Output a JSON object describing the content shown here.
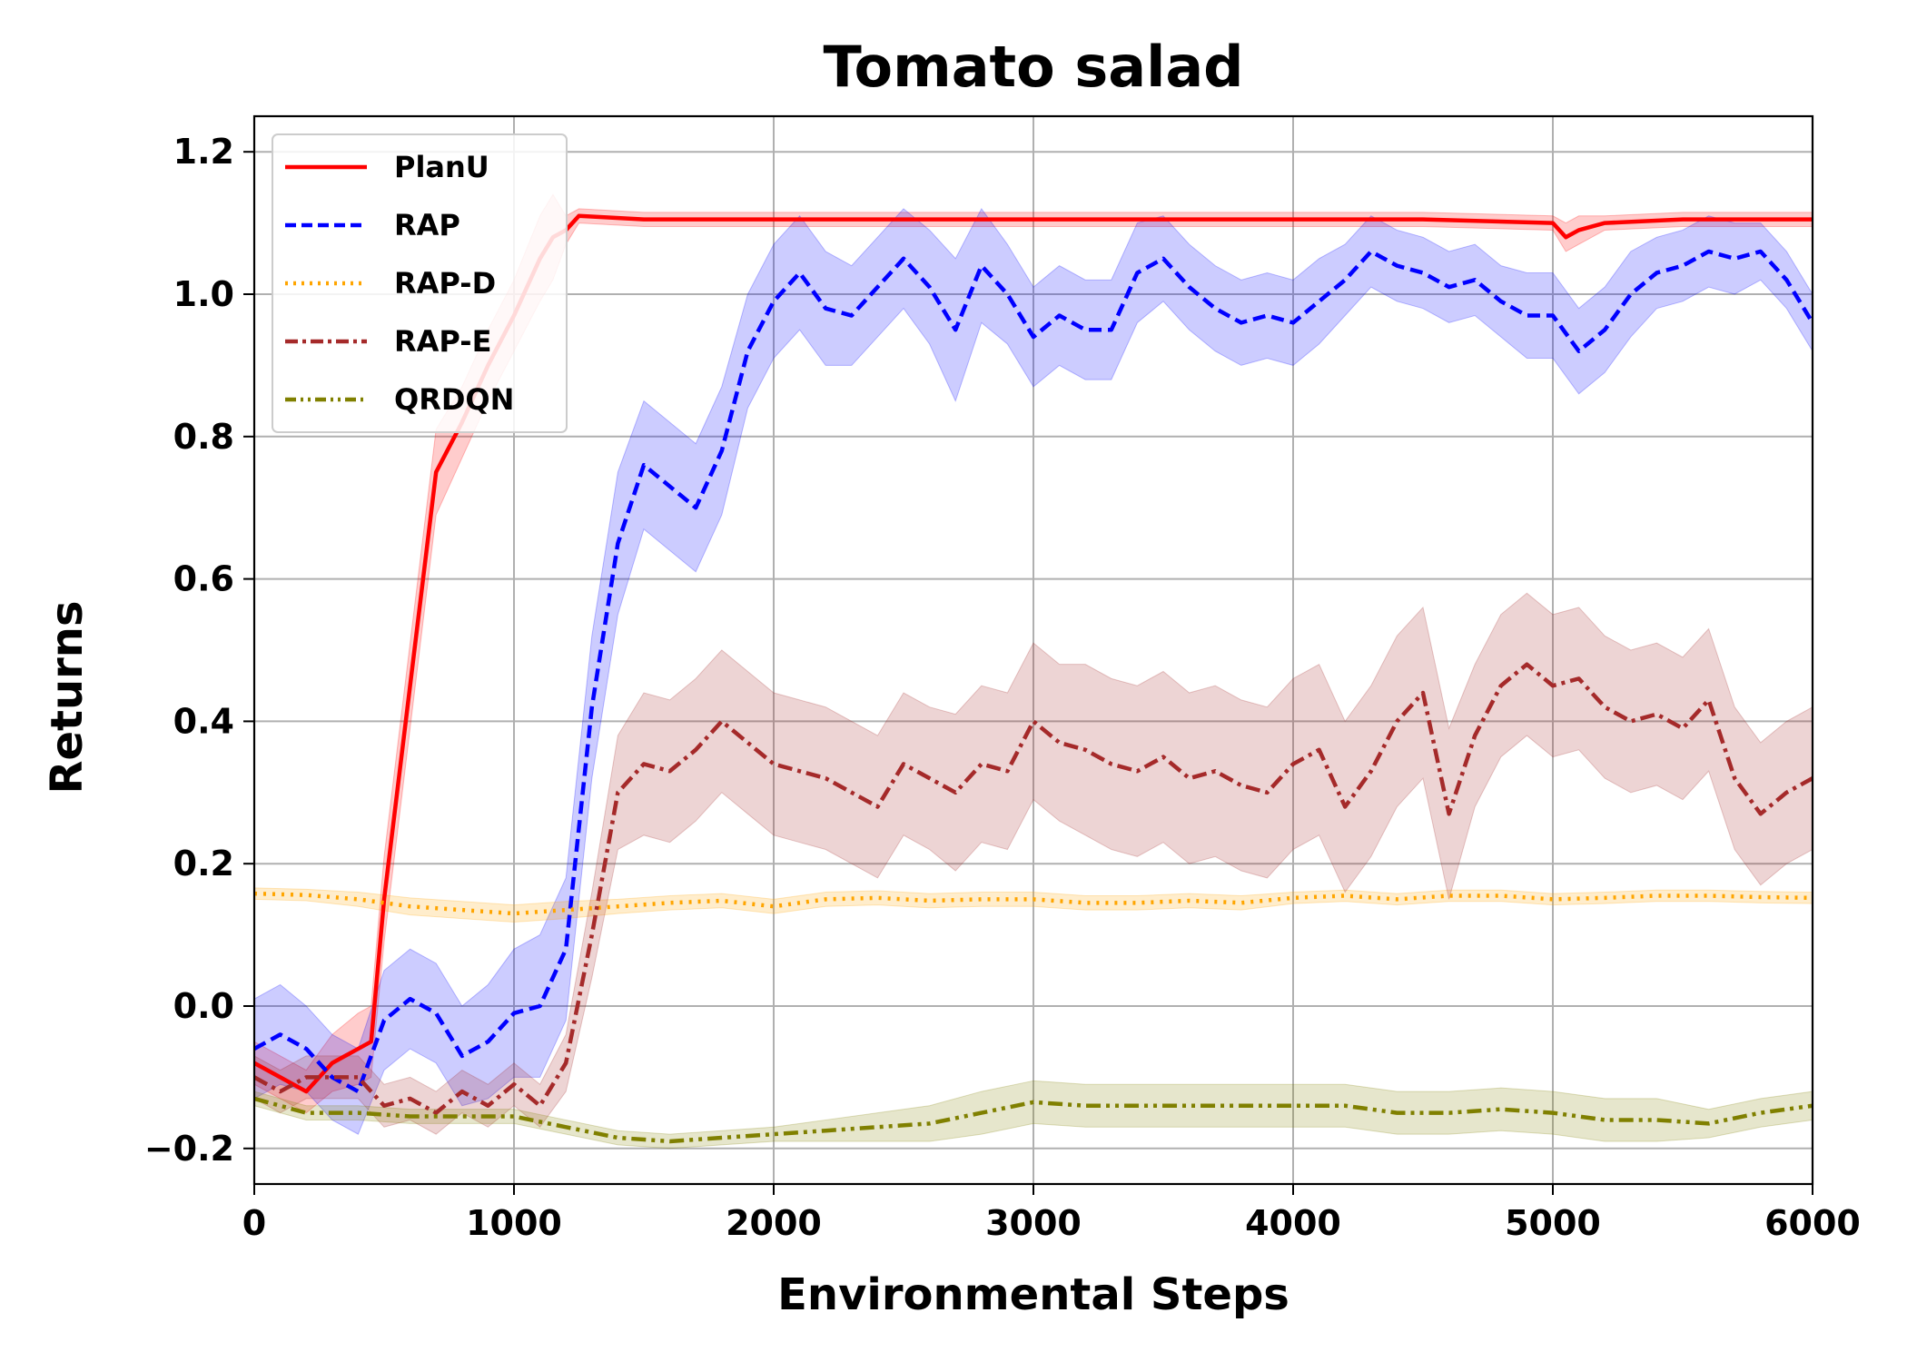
{
  "chart_data": {
    "type": "line",
    "title": "Tomato salad",
    "xlabel": "Environmental Steps",
    "ylabel": "Returns",
    "xlim": [
      0,
      6000
    ],
    "ylim": [
      -0.25,
      1.25
    ],
    "x_ticks": [
      0,
      1000,
      2000,
      3000,
      4000,
      5000,
      6000
    ],
    "x_tick_labels": [
      "0",
      "1000",
      "2000",
      "3000",
      "4000",
      "5000",
      "6000"
    ],
    "y_ticks": [
      -0.2,
      0.0,
      0.2,
      0.4,
      0.6,
      0.8,
      1.0,
      1.2
    ],
    "y_tick_labels": [
      "−0.2",
      "0.0",
      "0.2",
      "0.4",
      "0.6",
      "0.8",
      "1.0",
      "1.2"
    ],
    "grid": true,
    "legend_position": "top-left",
    "series": [
      {
        "name": "PlanU",
        "color": "#ff0000",
        "dash": "solid",
        "x": [
          0,
          100,
          200,
          300,
          400,
          450,
          500,
          600,
          700,
          800,
          900,
          1000,
          1100,
          1150,
          1200,
          1250,
          1500,
          2000,
          2500,
          3000,
          3500,
          4000,
          4500,
          5000,
          5050,
          5100,
          5200,
          5500,
          6000
        ],
        "y": [
          -0.08,
          -0.1,
          -0.12,
          -0.08,
          -0.06,
          -0.05,
          0.15,
          0.45,
          0.75,
          0.82,
          0.9,
          0.97,
          1.05,
          1.08,
          1.09,
          1.11,
          1.105,
          1.105,
          1.105,
          1.105,
          1.105,
          1.105,
          1.105,
          1.1,
          1.08,
          1.09,
          1.1,
          1.105,
          1.105
        ],
        "band": [
          0.03,
          0.03,
          0.03,
          0.04,
          0.05,
          0.05,
          0.06,
          0.06,
          0.06,
          0.05,
          0.05,
          0.05,
          0.06,
          0.06,
          0.02,
          0.01,
          0.01,
          0.01,
          0.01,
          0.01,
          0.01,
          0.01,
          0.01,
          0.01,
          0.02,
          0.02,
          0.01,
          0.01,
          0.01
        ]
      },
      {
        "name": "RAP",
        "color": "#0000ff",
        "dash": "dashed",
        "x": [
          0,
          100,
          200,
          300,
          400,
          500,
          600,
          700,
          800,
          900,
          1000,
          1100,
          1200,
          1300,
          1400,
          1500,
          1600,
          1700,
          1800,
          1900,
          2000,
          2100,
          2200,
          2300,
          2400,
          2500,
          2600,
          2700,
          2800,
          2900,
          3000,
          3100,
          3200,
          3300,
          3400,
          3500,
          3600,
          3700,
          3800,
          3900,
          4000,
          4100,
          4200,
          4300,
          4400,
          4500,
          4600,
          4700,
          4800,
          4900,
          5000,
          5100,
          5200,
          5300,
          5400,
          5500,
          5600,
          5700,
          5800,
          5900,
          6000
        ],
        "y": [
          -0.06,
          -0.04,
          -0.06,
          -0.1,
          -0.12,
          -0.02,
          0.01,
          -0.01,
          -0.07,
          -0.05,
          -0.01,
          0.0,
          0.08,
          0.42,
          0.65,
          0.76,
          0.73,
          0.7,
          0.78,
          0.92,
          0.99,
          1.03,
          0.98,
          0.97,
          1.01,
          1.05,
          1.01,
          0.95,
          1.04,
          1.0,
          0.94,
          0.97,
          0.95,
          0.95,
          1.03,
          1.05,
          1.01,
          0.98,
          0.96,
          0.97,
          0.96,
          0.99,
          1.02,
          1.06,
          1.04,
          1.03,
          1.01,
          1.02,
          0.99,
          0.97,
          0.97,
          0.92,
          0.95,
          1.0,
          1.03,
          1.04,
          1.06,
          1.05,
          1.06,
          1.02,
          0.96
        ],
        "band": [
          0.07,
          0.07,
          0.06,
          0.06,
          0.06,
          0.07,
          0.07,
          0.07,
          0.07,
          0.08,
          0.09,
          0.1,
          0.1,
          0.1,
          0.1,
          0.09,
          0.09,
          0.09,
          0.09,
          0.08,
          0.08,
          0.08,
          0.08,
          0.07,
          0.07,
          0.07,
          0.08,
          0.1,
          0.08,
          0.07,
          0.07,
          0.07,
          0.07,
          0.07,
          0.07,
          0.06,
          0.06,
          0.06,
          0.06,
          0.06,
          0.06,
          0.06,
          0.05,
          0.05,
          0.05,
          0.05,
          0.05,
          0.05,
          0.05,
          0.06,
          0.06,
          0.06,
          0.06,
          0.06,
          0.05,
          0.05,
          0.05,
          0.05,
          0.04,
          0.04,
          0.04
        ]
      },
      {
        "name": "RAP-D",
        "color": "#ffa500",
        "dash": "dotted",
        "x": [
          0,
          200,
          400,
          600,
          800,
          1000,
          1200,
          1400,
          1600,
          1800,
          2000,
          2200,
          2400,
          2600,
          2800,
          3000,
          3200,
          3400,
          3600,
          3800,
          4000,
          4200,
          4400,
          4600,
          4800,
          5000,
          5200,
          5400,
          5600,
          5800,
          6000
        ],
        "y": [
          0.158,
          0.156,
          0.15,
          0.14,
          0.135,
          0.13,
          0.135,
          0.14,
          0.145,
          0.148,
          0.14,
          0.15,
          0.152,
          0.148,
          0.15,
          0.15,
          0.145,
          0.145,
          0.148,
          0.145,
          0.152,
          0.155,
          0.15,
          0.155,
          0.155,
          0.15,
          0.152,
          0.155,
          0.155,
          0.153,
          0.152
        ],
        "band": [
          0.008,
          0.008,
          0.01,
          0.012,
          0.012,
          0.012,
          0.012,
          0.01,
          0.01,
          0.01,
          0.01,
          0.01,
          0.01,
          0.01,
          0.01,
          0.01,
          0.01,
          0.01,
          0.01,
          0.01,
          0.008,
          0.008,
          0.008,
          0.008,
          0.008,
          0.008,
          0.008,
          0.008,
          0.008,
          0.008,
          0.008
        ]
      },
      {
        "name": "RAP-E",
        "color": "#a52a2a",
        "dash": "dashdot",
        "x": [
          0,
          100,
          200,
          300,
          400,
          500,
          600,
          700,
          800,
          900,
          1000,
          1100,
          1200,
          1300,
          1400,
          1500,
          1600,
          1700,
          1800,
          1900,
          2000,
          2100,
          2200,
          2300,
          2400,
          2500,
          2600,
          2700,
          2800,
          2900,
          3000,
          3100,
          3200,
          3300,
          3400,
          3500,
          3600,
          3700,
          3800,
          3900,
          4000,
          4100,
          4200,
          4300,
          4400,
          4500,
          4600,
          4700,
          4800,
          4900,
          5000,
          5100,
          5200,
          5300,
          5400,
          5500,
          5600,
          5700,
          5800,
          5900,
          6000
        ],
        "y": [
          -0.1,
          -0.12,
          -0.1,
          -0.1,
          -0.1,
          -0.14,
          -0.13,
          -0.15,
          -0.12,
          -0.14,
          -0.11,
          -0.14,
          -0.08,
          0.1,
          0.3,
          0.34,
          0.33,
          0.36,
          0.4,
          0.37,
          0.34,
          0.33,
          0.32,
          0.3,
          0.28,
          0.34,
          0.32,
          0.3,
          0.34,
          0.33,
          0.4,
          0.37,
          0.36,
          0.34,
          0.33,
          0.35,
          0.32,
          0.33,
          0.31,
          0.3,
          0.34,
          0.36,
          0.28,
          0.33,
          0.4,
          0.44,
          0.27,
          0.38,
          0.45,
          0.48,
          0.45,
          0.46,
          0.42,
          0.4,
          0.41,
          0.39,
          0.43,
          0.32,
          0.27,
          0.3,
          0.32
        ],
        "band": [
          0.03,
          0.03,
          0.03,
          0.03,
          0.03,
          0.03,
          0.03,
          0.03,
          0.03,
          0.03,
          0.03,
          0.03,
          0.04,
          0.06,
          0.08,
          0.1,
          0.1,
          0.1,
          0.1,
          0.1,
          0.1,
          0.1,
          0.1,
          0.1,
          0.1,
          0.1,
          0.1,
          0.11,
          0.11,
          0.11,
          0.11,
          0.11,
          0.12,
          0.12,
          0.12,
          0.12,
          0.12,
          0.12,
          0.12,
          0.12,
          0.12,
          0.12,
          0.12,
          0.12,
          0.12,
          0.12,
          0.12,
          0.1,
          0.1,
          0.1,
          0.1,
          0.1,
          0.1,
          0.1,
          0.1,
          0.1,
          0.1,
          0.1,
          0.1,
          0.1,
          0.1
        ]
      },
      {
        "name": "QRDQN",
        "color": "#808000",
        "dash": "dashdotdot",
        "x": [
          0,
          200,
          400,
          600,
          800,
          1000,
          1200,
          1400,
          1600,
          1800,
          2000,
          2200,
          2400,
          2600,
          2800,
          3000,
          3200,
          3400,
          3600,
          3800,
          4000,
          4200,
          4400,
          4600,
          4800,
          5000,
          5200,
          5400,
          5600,
          5800,
          6000
        ],
        "y": [
          -0.13,
          -0.15,
          -0.15,
          -0.155,
          -0.155,
          -0.155,
          -0.17,
          -0.185,
          -0.19,
          -0.185,
          -0.18,
          -0.175,
          -0.17,
          -0.165,
          -0.15,
          -0.135,
          -0.14,
          -0.14,
          -0.14,
          -0.14,
          -0.14,
          -0.14,
          -0.15,
          -0.15,
          -0.145,
          -0.15,
          -0.16,
          -0.16,
          -0.165,
          -0.15,
          -0.14
        ],
        "band": [
          0.01,
          0.01,
          0.01,
          0.01,
          0.01,
          0.01,
          0.01,
          0.01,
          0.01,
          0.01,
          0.01,
          0.015,
          0.02,
          0.025,
          0.03,
          0.03,
          0.03,
          0.03,
          0.03,
          0.03,
          0.03,
          0.03,
          0.03,
          0.03,
          0.03,
          0.03,
          0.03,
          0.03,
          0.02,
          0.02,
          0.02
        ]
      }
    ]
  }
}
